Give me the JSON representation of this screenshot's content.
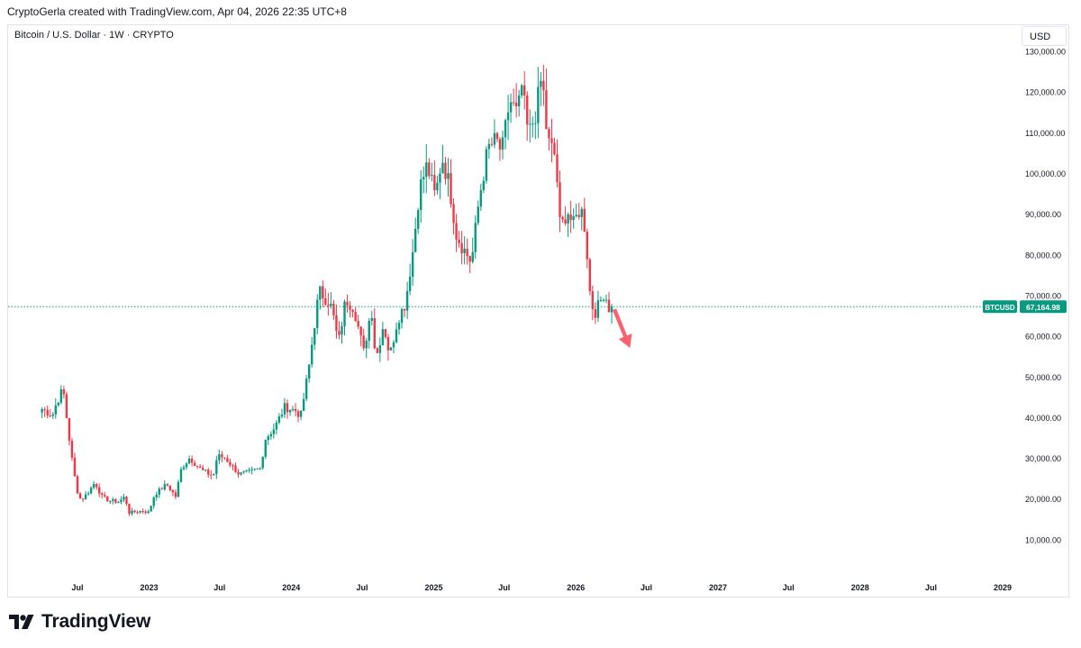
{
  "header": {
    "attribution": "CryptoGerla created with TradingView.com, Apr 04, 2026 22:35 UTC+8"
  },
  "symbol": {
    "title": "Bitcoin / U.S. Dollar · 1W · CRYPTO"
  },
  "currency_label": "USD",
  "footer": {
    "brand": "TradingView"
  },
  "colors": {
    "up": "#089981",
    "down": "#f23645",
    "last_price": "#089981",
    "annotation_arrow": "#f7525f"
  },
  "chart_data": {
    "type": "candlestick",
    "title": "Bitcoin / U.S. Dollar · 1W · CRYPTO",
    "interval": "1W",
    "y_axis": {
      "position": "right",
      "ticks": [
        10000,
        20000,
        30000,
        40000,
        50000,
        60000,
        70000,
        80000,
        90000,
        100000,
        110000,
        120000,
        130000
      ],
      "tick_labels": [
        "10,000.00",
        "20,000.00",
        "30,000.00",
        "40,000.00",
        "50,000.00",
        "60,000.00",
        "70,000.00",
        "80,000.00",
        "90,000.00",
        "100,000.00",
        "110,000.00",
        "120,000.00",
        "130,000.00"
      ]
    },
    "x_axis": {
      "ticks": [
        {
          "label": "Jul",
          "date": "2022-07-01"
        },
        {
          "label": "2023",
          "date": "2023-01-01"
        },
        {
          "label": "Jul",
          "date": "2023-07-01"
        },
        {
          "label": "2024",
          "date": "2024-01-01"
        },
        {
          "label": "Jul",
          "date": "2024-07-01"
        },
        {
          "label": "2025",
          "date": "2025-01-01"
        },
        {
          "label": "Jul",
          "date": "2025-07-01"
        },
        {
          "label": "2026",
          "date": "2026-01-01"
        },
        {
          "label": "Jul",
          "date": "2026-07-01"
        },
        {
          "label": "2027",
          "date": "2027-01-01"
        },
        {
          "label": "Jul",
          "date": "2027-07-01"
        },
        {
          "label": "2028",
          "date": "2028-01-01"
        },
        {
          "label": "Jul",
          "date": "2028-07-01"
        },
        {
          "label": "2029",
          "date": "2029-01-01"
        }
      ]
    },
    "last_price": {
      "symbol": "BTCUSD",
      "value": 67164.98,
      "label": "67,164.98"
    },
    "annotation": {
      "type": "arrow",
      "direction": "down",
      "from": {
        "date": "2026-04-10",
        "price": 66500
      },
      "to": {
        "date": "2026-05-20",
        "price": 57000
      }
    },
    "path": [
      [
        "2022-04-01",
        42000
      ],
      [
        "2022-04-28",
        40500
      ],
      [
        "2022-05-08",
        43500
      ],
      [
        "2022-05-25",
        47000
      ],
      [
        "2022-06-08",
        36000
      ],
      [
        "2022-06-20",
        27500
      ],
      [
        "2022-06-30",
        22000
      ],
      [
        "2022-07-10",
        19500
      ],
      [
        "2022-07-28",
        21500
      ],
      [
        "2022-08-15",
        24000
      ],
      [
        "2022-09-01",
        20500
      ],
      [
        "2022-09-20",
        19500
      ],
      [
        "2022-10-15",
        19200
      ],
      [
        "2022-10-31",
        20500
      ],
      [
        "2022-11-10",
        16500
      ],
      [
        "2022-12-15",
        17000
      ],
      [
        "2022-12-31",
        16600
      ],
      [
        "2023-01-15",
        21000
      ],
      [
        "2023-02-15",
        23500
      ],
      [
        "2023-03-10",
        20500
      ],
      [
        "2023-03-25",
        27500
      ],
      [
        "2023-04-15",
        30000
      ],
      [
        "2023-05-15",
        27000
      ],
      [
        "2023-06-15",
        25500
      ],
      [
        "2023-06-25",
        30500
      ],
      [
        "2023-07-15",
        30000
      ],
      [
        "2023-08-20",
        26000
      ],
      [
        "2023-09-15",
        26500
      ],
      [
        "2023-10-15",
        27500
      ],
      [
        "2023-10-25",
        34500
      ],
      [
        "2023-11-20",
        37500
      ],
      [
        "2023-12-15",
        42500
      ],
      [
        "2024-01-15",
        41500
      ],
      [
        "2024-01-25",
        40000
      ],
      [
        "2024-02-15",
        52000
      ],
      [
        "2024-03-05",
        66000
      ],
      [
        "2024-03-13",
        71000
      ],
      [
        "2024-04-10",
        68000
      ],
      [
        "2024-04-20",
        64000
      ],
      [
        "2024-05-01",
        58000
      ],
      [
        "2024-05-20",
        69000
      ],
      [
        "2024-06-10",
        67000
      ],
      [
        "2024-07-05",
        56000
      ],
      [
        "2024-07-25",
        67000
      ],
      [
        "2024-08-05",
        54000
      ],
      [
        "2024-08-25",
        63000
      ],
      [
        "2024-09-10",
        55000
      ],
      [
        "2024-09-30",
        64000
      ],
      [
        "2024-10-20",
        68000
      ],
      [
        "2024-11-10",
        82000
      ],
      [
        "2024-11-25",
        96000
      ],
      [
        "2024-12-15",
        102000
      ],
      [
        "2025-01-05",
        94000
      ],
      [
        "2025-01-22",
        104000
      ],
      [
        "2025-02-10",
        97000
      ],
      [
        "2025-02-28",
        85000
      ],
      [
        "2025-03-15",
        82000
      ],
      [
        "2025-04-08",
        78000
      ],
      [
        "2025-04-28",
        94000
      ],
      [
        "2025-05-20",
        106000
      ],
      [
        "2025-06-10",
        108000
      ],
      [
        "2025-06-25",
        105000
      ],
      [
        "2025-07-15",
        118000
      ],
      [
        "2025-08-05",
        114000
      ],
      [
        "2025-08-14",
        122000
      ],
      [
        "2025-09-01",
        109000
      ],
      [
        "2025-09-20",
        115000
      ],
      [
        "2025-10-06",
        124000
      ],
      [
        "2025-10-20",
        108000
      ],
      [
        "2025-11-10",
        104000
      ],
      [
        "2025-11-22",
        86000
      ],
      [
        "2025-12-10",
        91000
      ],
      [
        "2025-12-25",
        87000
      ],
      [
        "2026-01-10",
        91000
      ],
      [
        "2026-01-20",
        90000
      ],
      [
        "2026-02-01",
        78000
      ],
      [
        "2026-02-08",
        68000
      ],
      [
        "2026-02-20",
        66000
      ],
      [
        "2026-03-01",
        67500
      ],
      [
        "2026-03-15",
        71000
      ],
      [
        "2026-03-28",
        66500
      ],
      [
        "2026-04-04",
        67164.98
      ]
    ]
  }
}
